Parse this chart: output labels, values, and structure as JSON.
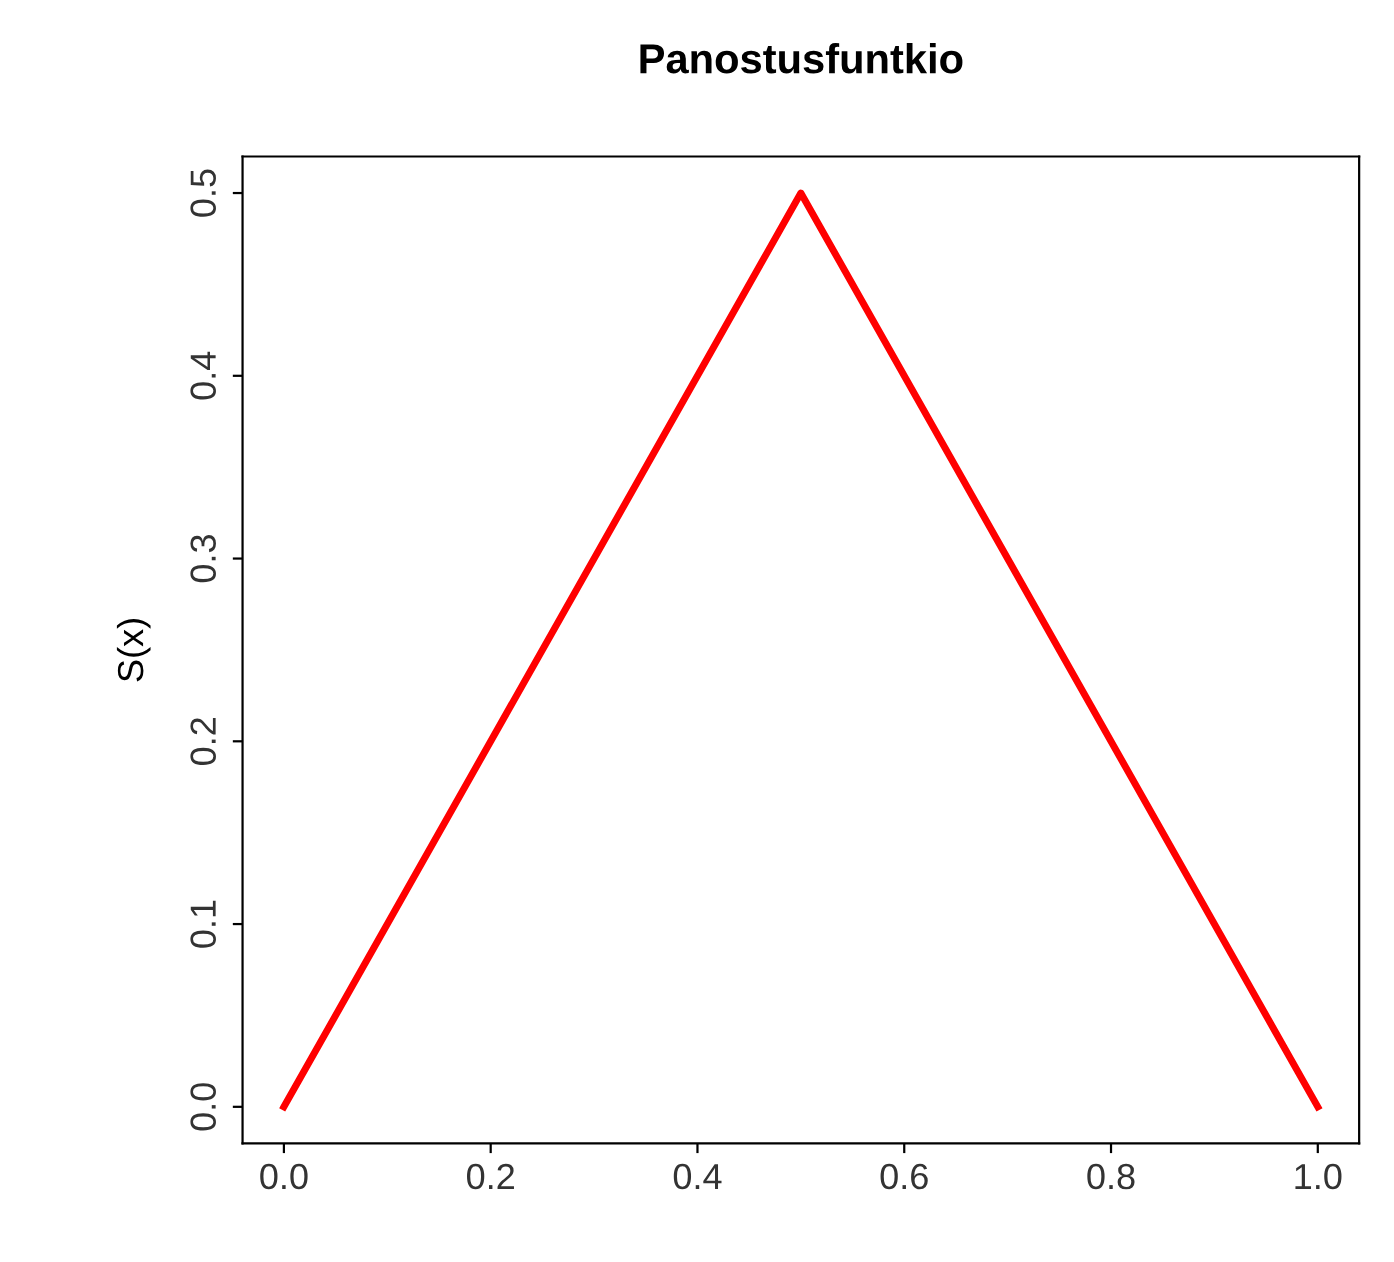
{
  "chart_data": {
    "type": "line",
    "title": "Panostusfuntkio",
    "ylabel": "S(x)",
    "x": [
      0,
      0.5,
      1.0
    ],
    "series": [
      {
        "color": "#ff0000",
        "values": [
          0,
          0.5,
          0
        ]
      }
    ],
    "xlim": [
      -0.04,
      1.04
    ],
    "ylim": [
      -0.02,
      0.52
    ],
    "xticks": [
      {
        "value": 0,
        "label": "0.0"
      },
      0.2,
      0.4,
      0.6,
      0.8,
      {
        "value": 1,
        "label": "1.0"
      }
    ],
    "yticks": [
      {
        "value": 0,
        "label": "0.0"
      },
      0.1,
      0.2,
      0.3,
      0.4,
      0.5
    ],
    "grid": false,
    "legend": false,
    "marker": "none",
    "line_style": "solid"
  }
}
